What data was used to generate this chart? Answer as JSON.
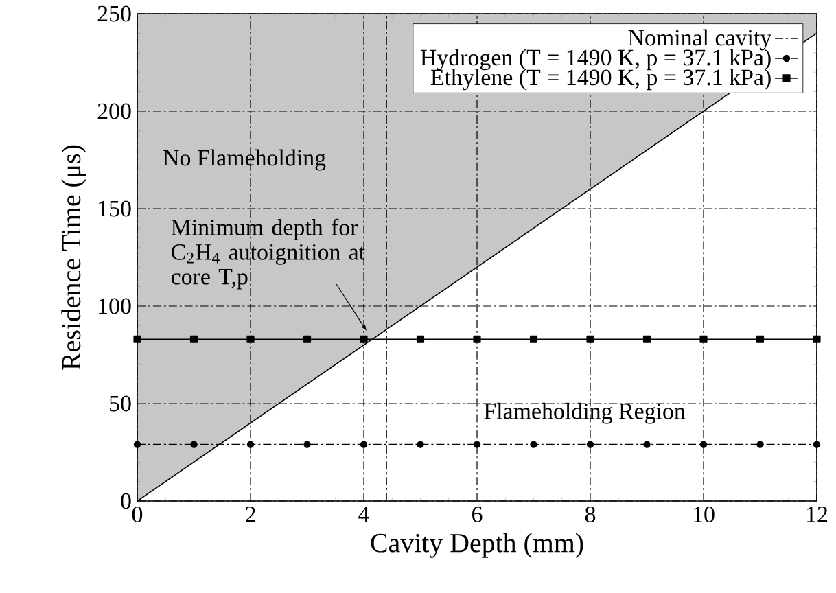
{
  "chart_data": {
    "type": "line",
    "xlabel": "Cavity Depth (mm)",
    "ylabel": "Residence Time (μs)",
    "xlim": [
      0,
      12
    ],
    "ylim": [
      0,
      250
    ],
    "xticks": [
      0,
      2,
      4,
      6,
      8,
      10,
      12
    ],
    "yticks": [
      0,
      50,
      100,
      150,
      200,
      250
    ],
    "grid": true,
    "legend": "top right",
    "series": [
      {
        "type": "line",
        "color": "#000000",
        "x": [
          0,
          12
        ],
        "values": [
          0,
          240
        ],
        "lower": [
          0,
          240
        ],
        "upper": [
          250,
          250
        ],
        "line_style": "solid",
        "marker": "none"
      },
      {
        "name": "Nominal cavity",
        "color": "#000000",
        "x": [
          4.4,
          4.4
        ],
        "values": [
          0,
          250
        ],
        "line_style": "dashdot",
        "marker": "none"
      },
      {
        "name": "Hydrogen (T = 1490 K, p = 37.1 kPa)",
        "color": "#000000",
        "x": [
          0,
          1,
          2,
          3,
          4,
          5,
          6,
          7,
          8,
          9,
          10,
          11,
          12
        ],
        "values": [
          29,
          29,
          29,
          29,
          29,
          29,
          29,
          29,
          29,
          29,
          29,
          29,
          29
        ],
        "line_style": "dashdot",
        "marker": "circle"
      },
      {
        "name": "Ethylene (T = 1490 K, p = 37.1 kPa)",
        "color": "#000000",
        "x": [
          0,
          1,
          2,
          3,
          4,
          5,
          6,
          7,
          8,
          9,
          10,
          11,
          12
        ],
        "values": [
          83,
          83,
          83,
          83,
          83,
          83,
          83,
          83,
          83,
          83,
          83,
          83,
          83
        ],
        "line_style": "solid",
        "marker": "square"
      }
    ],
    "annotations": [
      "No Flameholding",
      {
        "text": "Minimum depth for C$_{2}$H$_{4}$ autoignition at core T,p",
        "x": 4.1,
        "y": 83
      },
      "Flameholding Region"
    ]
  }
}
